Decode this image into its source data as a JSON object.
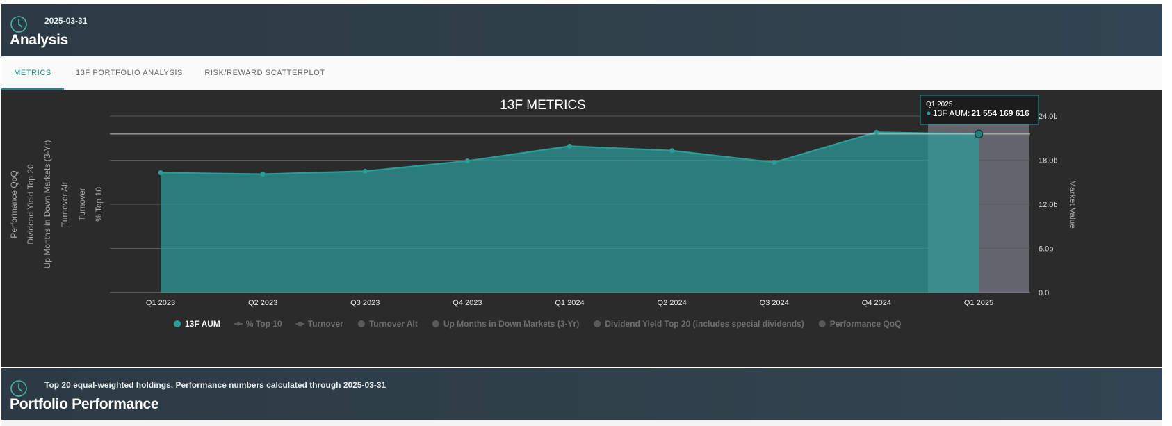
{
  "analysis_header": {
    "date": "2025-03-31",
    "title": "Analysis",
    "icon": "clock-icon"
  },
  "tabs": [
    {
      "label": "METRICS",
      "active": true
    },
    {
      "label": "13F PORTFOLIO ANALYSIS",
      "active": false
    },
    {
      "label": "RISK/REWARD SCATTERPLOT",
      "active": false
    }
  ],
  "colors": {
    "accent": "#1a8a89",
    "series": "#2a9d99",
    "header_bg": "#2f3e48",
    "chart_bg": "#2b2b2b"
  },
  "chart_data": {
    "type": "area",
    "title": "13F METRICS",
    "categories": [
      "Q1 2023",
      "Q2 2023",
      "Q3 2023",
      "Q4 2023",
      "Q1 2024",
      "Q2 2024",
      "Q3 2024",
      "Q4 2024",
      "Q1 2025"
    ],
    "series": [
      {
        "name": "13F AUM",
        "values": [
          16.3,
          16.1,
          16.5,
          17.9,
          19.9,
          19.3,
          17.7,
          21.8,
          21.554169616
        ],
        "visible": true
      },
      {
        "name": "% Top 10",
        "visible": false
      },
      {
        "name": "Turnover",
        "visible": false
      },
      {
        "name": "Turnover Alt",
        "visible": false
      },
      {
        "name": "Up Months in Down Markets (3-Yr)",
        "visible": false
      },
      {
        "name": "Dividend Yield Top 20 (includes special dividends)",
        "visible": false
      },
      {
        "name": "Performance QoQ",
        "visible": false
      }
    ],
    "y_right": {
      "label": "Market Value",
      "ticks": [
        "0.0",
        "6.0b",
        "12.0b",
        "18.0b",
        "24.0b"
      ],
      "ylim": [
        0,
        24
      ]
    },
    "y_left_labels": [
      "Performance QoQ",
      "Dividend Yield Top 20",
      "Up Months in Down Markets (3-Yr)",
      "Turnover Alt",
      "Turnover",
      "% Top 10"
    ],
    "legend_position": "bottom",
    "grid": true,
    "highlight_category": "Q1 2025",
    "tooltip": {
      "title": "Q1 2025",
      "series": "13F AUM",
      "value": "21 554 169 616"
    }
  },
  "portfolio_header": {
    "subtitle": "Top 20 equal-weighted holdings. Performance numbers calculated through 2025-03-31",
    "title": "Portfolio Performance",
    "icon": "clock-icon"
  }
}
